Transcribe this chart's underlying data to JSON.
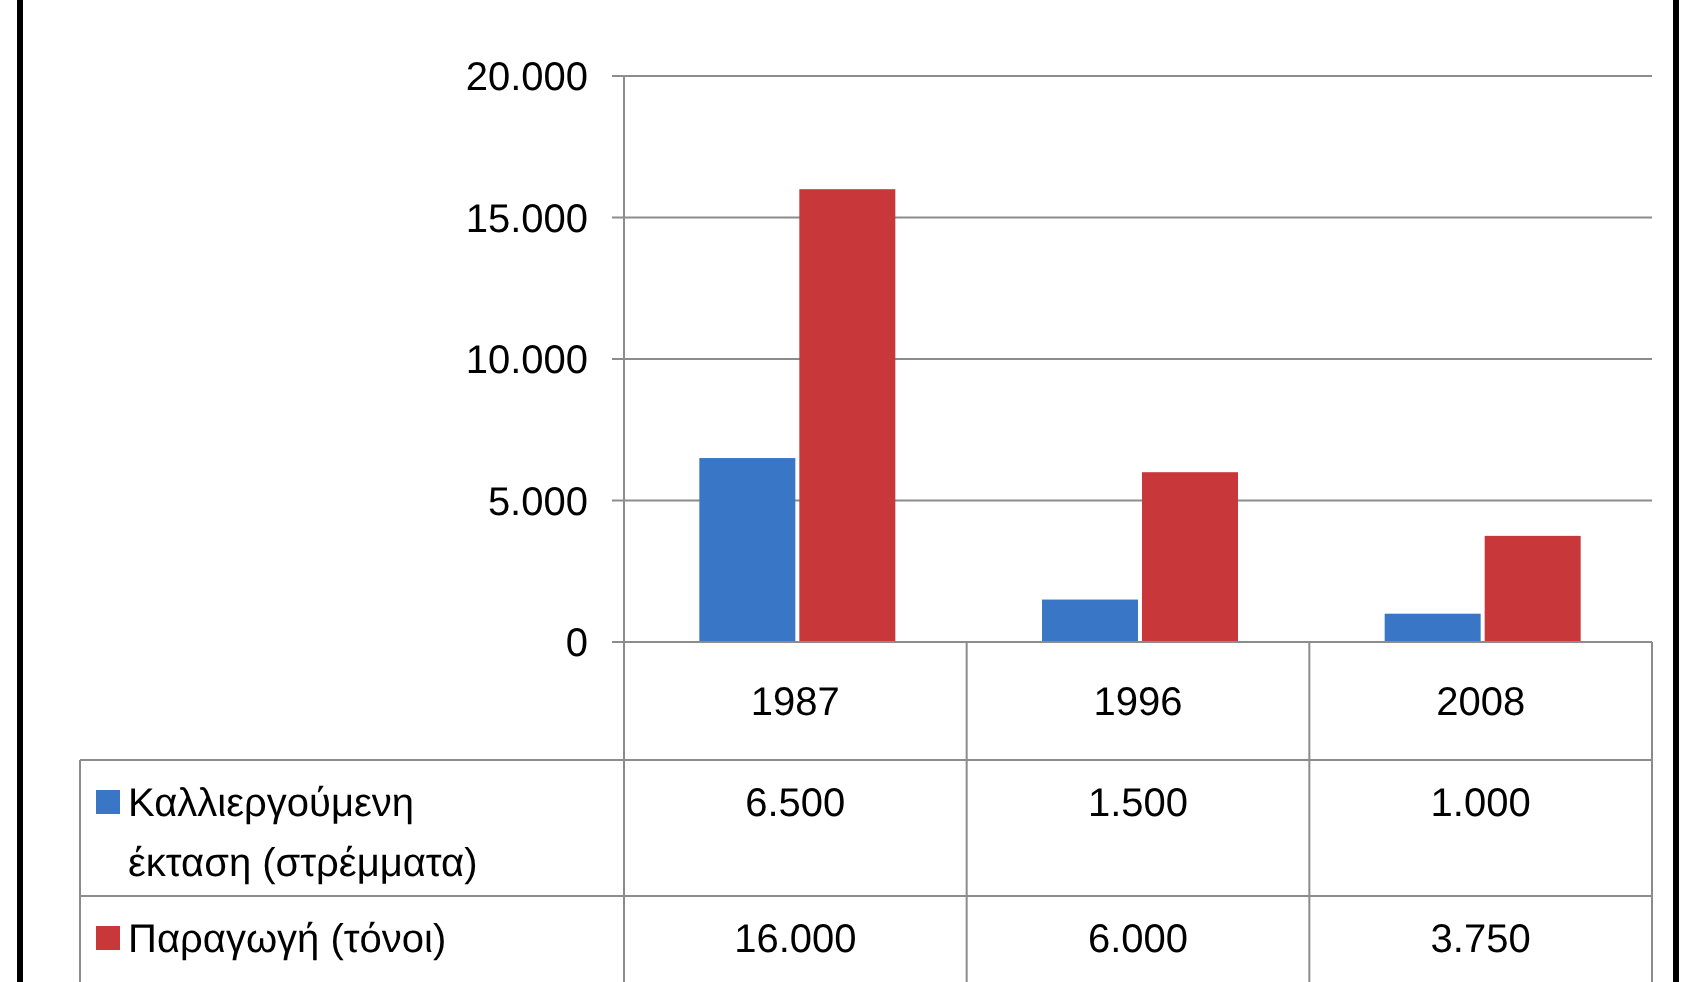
{
  "chart_data": {
    "type": "bar",
    "categories": [
      "1987",
      "1996",
      "2008"
    ],
    "series": [
      {
        "name": "Καλλιεργούμενη έκταση (στρέμματα)",
        "color": "#3a76c6",
        "values": [
          6500,
          1500,
          1000
        ],
        "value_labels": [
          "6.500",
          "1.500",
          "1.000"
        ]
      },
      {
        "name": "Παραγωγή (τόνοι)",
        "color": "#c8383a",
        "values": [
          16000,
          6000,
          3750
        ],
        "value_labels": [
          "16.000",
          "6.000",
          "3.750"
        ]
      }
    ],
    "ylim": [
      0,
      20000
    ],
    "yticks": [
      {
        "value": 0,
        "label": "0"
      },
      {
        "value": 5000,
        "label": "5.000"
      },
      {
        "value": 10000,
        "label": "10.000"
      },
      {
        "value": 15000,
        "label": "15.000"
      },
      {
        "value": 20000,
        "label": "20.000"
      }
    ],
    "grid": "y",
    "legend": "bottom"
  }
}
